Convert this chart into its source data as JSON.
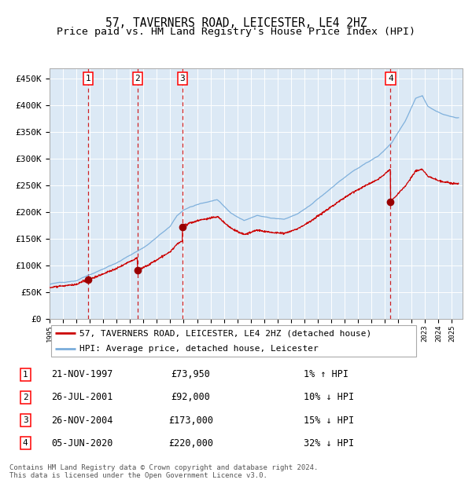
{
  "title": "57, TAVERNERS ROAD, LEICESTER, LE4 2HZ",
  "subtitle": "Price paid vs. HM Land Registry's House Price Index (HPI)",
  "ylim": [
    0,
    470000
  ],
  "xlim_start": 1995.0,
  "xlim_end": 2025.8,
  "yticks": [
    0,
    50000,
    100000,
    150000,
    200000,
    250000,
    300000,
    350000,
    400000,
    450000
  ],
  "ytick_labels": [
    "£0",
    "£50K",
    "£100K",
    "£150K",
    "£200K",
    "£250K",
    "£300K",
    "£350K",
    "£400K",
    "£450K"
  ],
  "plot_bg_color": "#dce9f5",
  "grid_color": "#ffffff",
  "red_line_color": "#cc0000",
  "blue_line_color": "#7aaddb",
  "sale_marker_color": "#990000",
  "dashed_line_color": "#cc0000",
  "title_fontsize": 10.5,
  "subtitle_fontsize": 9.5,
  "tick_fontsize": 8,
  "legend_fontsize": 8,
  "table_fontsize": 8.5,
  "footer_fontsize": 6.5,
  "transactions": [
    {
      "num": 1,
      "date": "21-NOV-1997",
      "price": 73950,
      "year": 1997.89,
      "hpi_rel": "1% ↑ HPI"
    },
    {
      "num": 2,
      "date": "26-JUL-2001",
      "price": 92000,
      "year": 2001.56,
      "hpi_rel": "10% ↓ HPI"
    },
    {
      "num": 3,
      "date": "26-NOV-2004",
      "price": 173000,
      "year": 2004.9,
      "hpi_rel": "15% ↓ HPI"
    },
    {
      "num": 4,
      "date": "05-JUN-2020",
      "price": 220000,
      "year": 2020.43,
      "hpi_rel": "32% ↓ HPI"
    }
  ],
  "footer_line1": "Contains HM Land Registry data © Crown copyright and database right 2024.",
  "footer_line2": "This data is licensed under the Open Government Licence v3.0.",
  "legend_label_red": "57, TAVERNERS ROAD, LEICESTER, LE4 2HZ (detached house)",
  "legend_label_blue": "HPI: Average price, detached house, Leicester"
}
